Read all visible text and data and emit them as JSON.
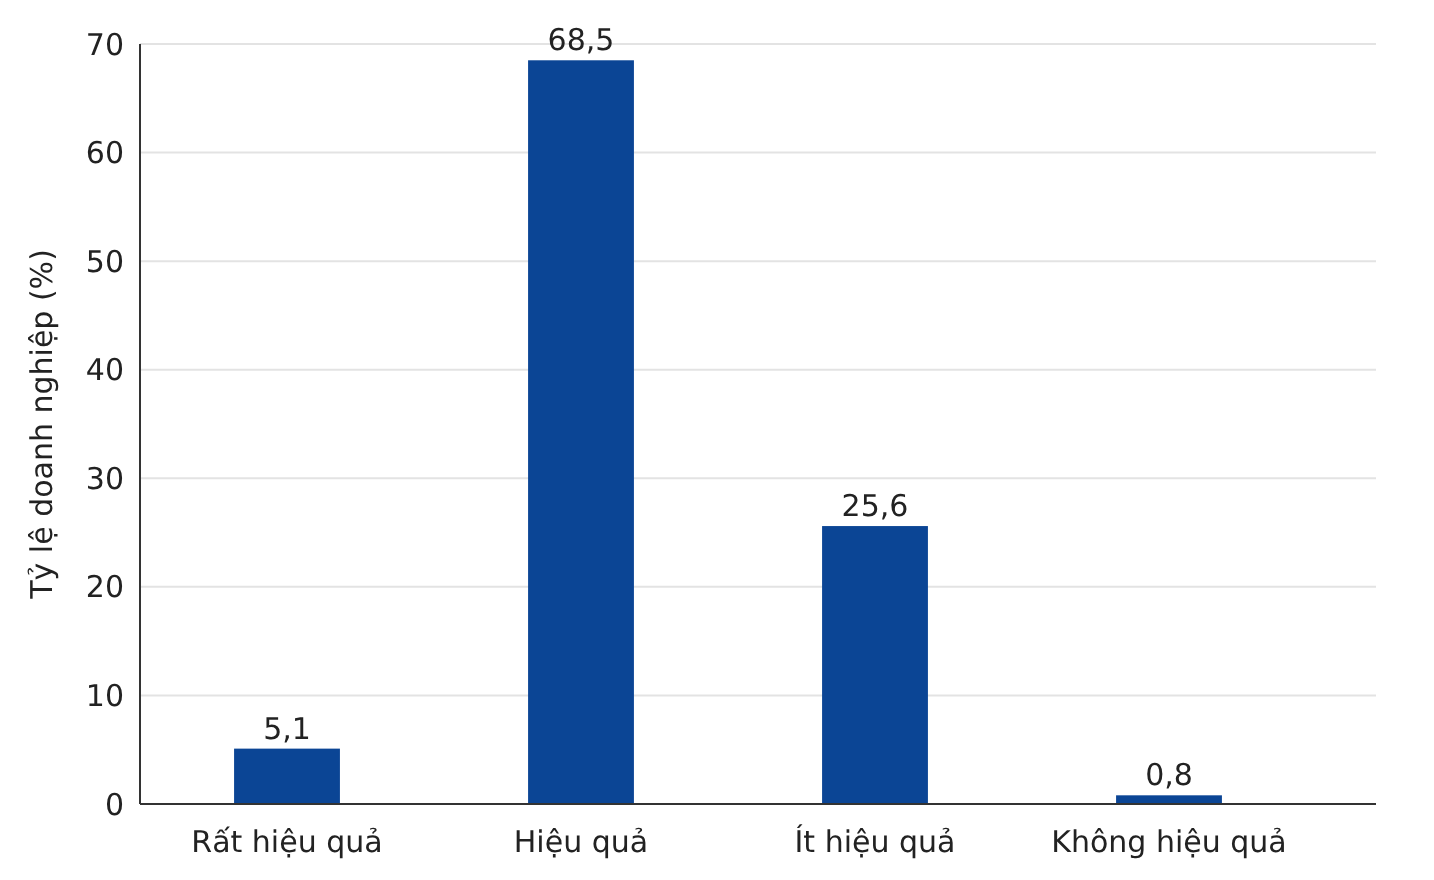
{
  "chart_data": {
    "type": "bar",
    "ylabel": "Tỷ lệ doanh nghiệp (%)",
    "categories": [
      "Rất hiệu quả",
      "Hiệu quả",
      "Ít hiệu quả",
      "Không hiệu quả"
    ],
    "values": [
      5.1,
      68.5,
      25.6,
      0.8
    ],
    "color": "#0b4595",
    "value_labels": [
      "5,1",
      "68,5",
      "25,6",
      "0,8"
    ],
    "ylim": [
      0,
      70
    ],
    "yticks": [
      0,
      10,
      20,
      30,
      40,
      50,
      60,
      70
    ],
    "grid": "y"
  }
}
